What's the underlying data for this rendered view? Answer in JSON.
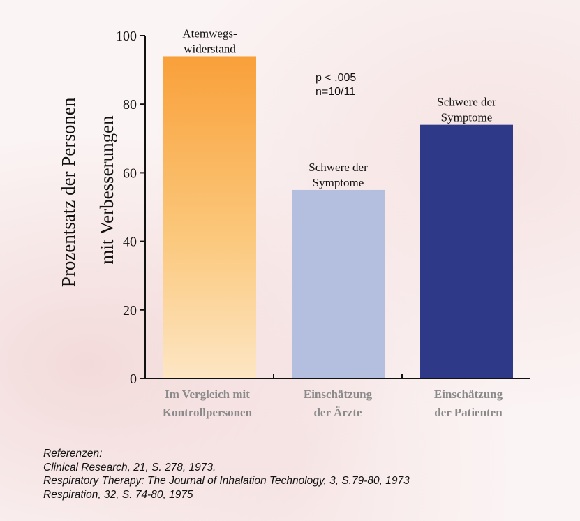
{
  "chart_data": {
    "type": "bar",
    "categories": [
      [
        "Im Vergleich mit",
        "Kontrollpersonen"
      ],
      [
        "Einschätzung",
        "der Ärzte"
      ],
      [
        "Einschätzung",
        "der Patienten"
      ]
    ],
    "values": [
      94,
      55,
      74
    ],
    "bar_labels": [
      [
        "Atemwegs-",
        "widerstand"
      ],
      [
        "Schwere der",
        "Symptome"
      ],
      [
        "Schwere der",
        "Symptome"
      ]
    ],
    "bar_colors": [
      "#f9a23a",
      "#b4bfe0",
      "#2e3a87"
    ],
    "ylabel": [
      "Prozentsatz der Personen",
      "mit Verbesserungen"
    ],
    "ylim": [
      0,
      100
    ],
    "yticks": [
      "0",
      "20",
      "40",
      "60",
      "80",
      "100"
    ],
    "annotations": [
      "p < .005",
      "n=10/11"
    ],
    "grid": false
  },
  "references": {
    "heading": "Referenzen:",
    "items": [
      "Clinical Research, 21, S. 278, 1973.",
      "Respiratory Therapy: The Journal of Inhalation Technology, 3, S.79-80, 1973",
      "Respiration, 32, S. 74-80, 1975"
    ]
  }
}
